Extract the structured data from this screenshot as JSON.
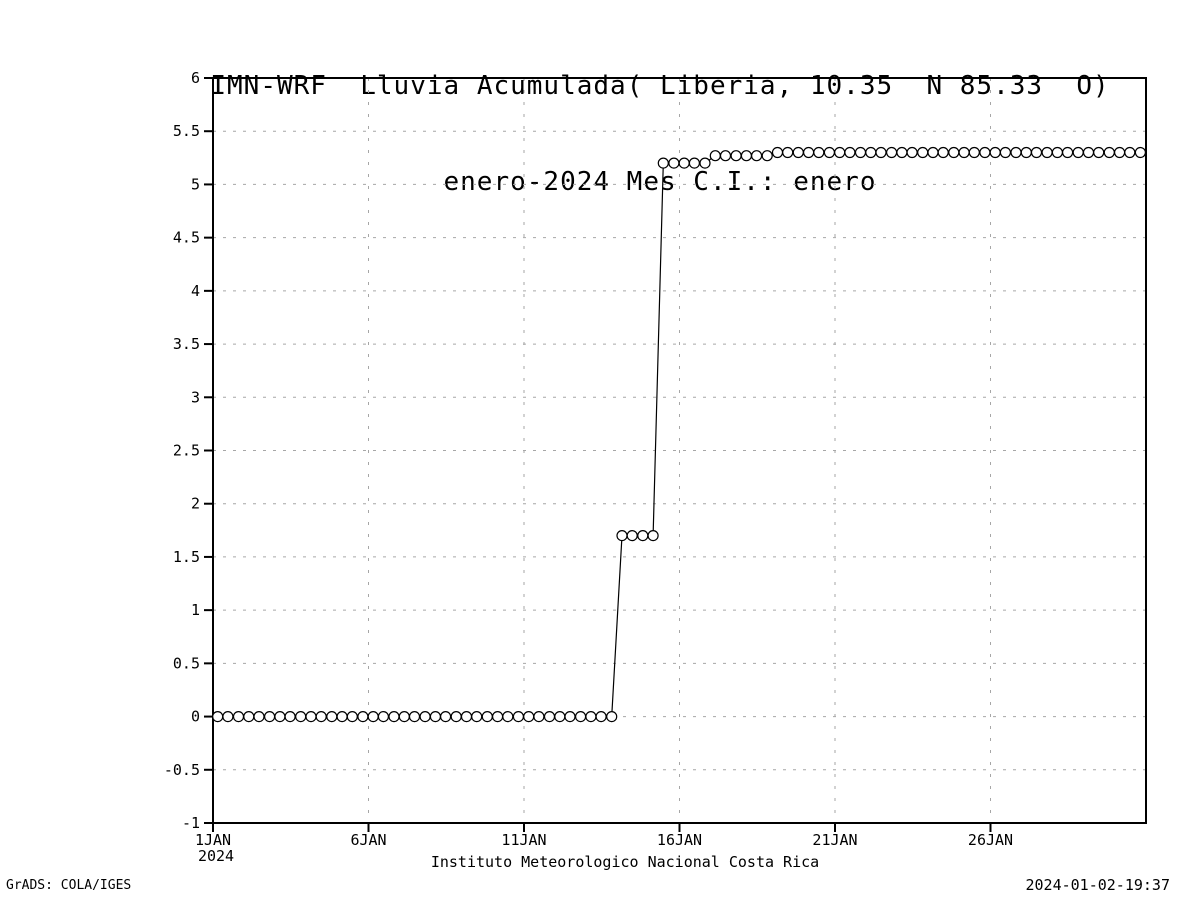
{
  "header": {
    "title_line1": "IMN-WRF  Lluvia Acumulada( Liberia, 10.35  N 85.33  O)",
    "title_line2": "enero-2024 Mes C.I.: enero"
  },
  "footer": {
    "attribution": "GrADS: COLA/IGES",
    "timestamp": "2024-01-02-19:37"
  },
  "colors": {
    "background": "#ffffff",
    "axis": "#000000",
    "grid": "#a6a6a6",
    "series_line": "#000000",
    "marker_stroke": "#000000",
    "marker_fill": "#ffffff"
  },
  "chart_data": {
    "type": "line",
    "title": "IMN-WRF  Lluvia Acumulada( Liberia, 10.35  N 85.33  O)",
    "subtitle": "enero-2024 Mes C.I.: enero",
    "xlabel": "Instituto Meteorologico Nacional Costa Rica",
    "ylabel": "",
    "grid": "dashed",
    "legend": "none",
    "x_axis": {
      "min": 1,
      "max": 31,
      "unit": "day of January 2024",
      "ticks": [
        {
          "pos": 1,
          "label": "1JAN",
          "sublabel": "2024"
        },
        {
          "pos": 6,
          "label": "6JAN"
        },
        {
          "pos": 11,
          "label": "11JAN"
        },
        {
          "pos": 16,
          "label": "16JAN"
        },
        {
          "pos": 21,
          "label": "21JAN"
        },
        {
          "pos": 26,
          "label": "26JAN"
        }
      ],
      "gridlines_at": [
        6,
        11,
        16,
        21,
        26
      ]
    },
    "y_axis": {
      "min": -1,
      "max": 6,
      "tick_values": [
        -1,
        -0.5,
        0,
        0.5,
        1,
        1.5,
        2,
        2.5,
        3,
        3.5,
        4,
        4.5,
        5,
        5.5,
        6
      ],
      "tick_labels": [
        "-1",
        "-0.5",
        "0",
        "0.5",
        "1",
        "1.5",
        "2",
        "2.5",
        "3",
        "3.5",
        "4",
        "4.5",
        "5",
        "5.5",
        "6"
      ],
      "gridlines_at": [
        -0.5,
        0,
        0.5,
        1,
        1.5,
        2,
        2.5,
        3,
        3.5,
        4,
        4.5,
        5,
        5.5
      ]
    },
    "series": [
      {
        "name": "lluvia-acumulada",
        "marker": "open-circle",
        "color": "#000000",
        "x": [
          1.15,
          1.48,
          1.82,
          2.15,
          2.48,
          2.82,
          3.15,
          3.48,
          3.82,
          4.15,
          4.48,
          4.82,
          5.15,
          5.48,
          5.82,
          6.15,
          6.48,
          6.82,
          7.15,
          7.48,
          7.82,
          8.15,
          8.48,
          8.82,
          9.15,
          9.48,
          9.82,
          10.15,
          10.48,
          10.82,
          11.15,
          11.48,
          11.82,
          12.15,
          12.48,
          12.82,
          13.15,
          13.48,
          13.82,
          14.15,
          14.48,
          14.82,
          15.15,
          15.48,
          15.82,
          16.15,
          16.48,
          16.82,
          17.15,
          17.48,
          17.82,
          18.15,
          18.48,
          18.82,
          19.15,
          19.48,
          19.82,
          20.15,
          20.48,
          20.82,
          21.15,
          21.48,
          21.82,
          22.15,
          22.48,
          22.82,
          23.15,
          23.48,
          23.82,
          24.15,
          24.48,
          24.82,
          25.15,
          25.48,
          25.82,
          26.15,
          26.48,
          26.82,
          27.15,
          27.48,
          27.82,
          28.15,
          28.48,
          28.82,
          29.15,
          29.48,
          29.82,
          30.15,
          30.48,
          30.82
        ],
        "y": [
          0,
          0,
          0,
          0,
          0,
          0,
          0,
          0,
          0,
          0,
          0,
          0,
          0,
          0,
          0,
          0,
          0,
          0,
          0,
          0,
          0,
          0,
          0,
          0,
          0,
          0,
          0,
          0,
          0,
          0,
          0,
          0,
          0,
          0,
          0,
          0,
          0,
          0,
          0,
          1.7,
          1.7,
          1.7,
          1.7,
          5.2,
          5.2,
          5.2,
          5.2,
          5.2,
          5.27,
          5.27,
          5.27,
          5.27,
          5.27,
          5.27,
          5.3,
          5.3,
          5.3,
          5.3,
          5.3,
          5.3,
          5.3,
          5.3,
          5.3,
          5.3,
          5.3,
          5.3,
          5.3,
          5.3,
          5.3,
          5.3,
          5.3,
          5.3,
          5.3,
          5.3,
          5.3,
          5.3,
          5.3,
          5.3,
          5.3,
          5.3,
          5.3,
          5.3,
          5.3,
          5.3,
          5.3,
          5.3,
          5.3,
          5.3,
          5.3,
          5.3
        ]
      }
    ]
  }
}
